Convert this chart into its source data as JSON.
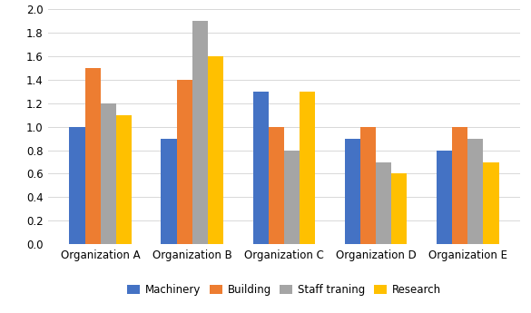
{
  "categories": [
    "Organization A",
    "Organization B",
    "Organization C",
    "Organization D",
    "Organization E"
  ],
  "series": {
    "Machinery": [
      1.0,
      0.9,
      1.3,
      0.9,
      0.8
    ],
    "Building": [
      1.5,
      1.4,
      1.0,
      1.0,
      1.0
    ],
    "Staff traning": [
      1.2,
      1.9,
      0.8,
      0.7,
      0.9
    ],
    "Research": [
      1.1,
      1.6,
      1.3,
      0.6,
      0.7
    ]
  },
  "colors": {
    "Machinery": "#4472C4",
    "Building": "#ED7D31",
    "Staff traning": "#A5A5A5",
    "Research": "#FFC000"
  },
  "ylim": [
    0,
    2.0
  ],
  "yticks": [
    0,
    0.2,
    0.4,
    0.6,
    0.8,
    1.0,
    1.2,
    1.4,
    1.6,
    1.8,
    2.0
  ],
  "background_color": "#FFFFFF",
  "bar_width": 0.17,
  "tick_fontsize": 8.5,
  "legend_fontsize": 8.5
}
